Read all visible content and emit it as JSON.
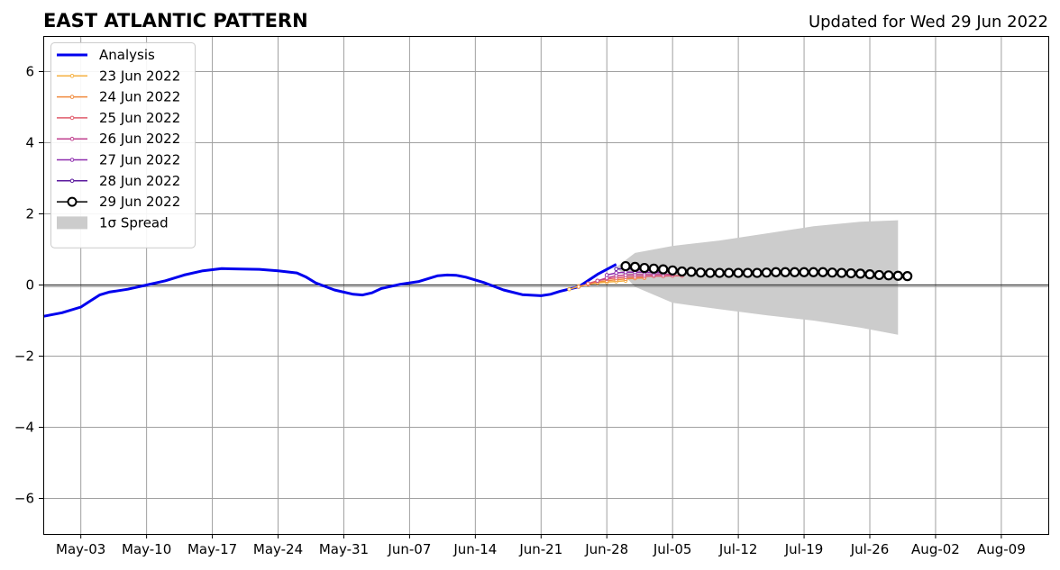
{
  "chart_data": {
    "type": "line",
    "title": "EAST ATLANTIC PATTERN",
    "subtitle": "Updated for Wed 29 Jun 2022",
    "xlabel": "",
    "ylabel": "",
    "xlim": [
      "2022-04-29",
      "2022-08-14"
    ],
    "ylim": [
      -7,
      7
    ],
    "grid": true,
    "legend_position": "top-left",
    "x_ticks": [
      {
        "date": "2022-05-03",
        "label": "May-03"
      },
      {
        "date": "2022-05-10",
        "label": "May-10"
      },
      {
        "date": "2022-05-17",
        "label": "May-17"
      },
      {
        "date": "2022-05-24",
        "label": "May-24"
      },
      {
        "date": "2022-05-31",
        "label": "May-31"
      },
      {
        "date": "2022-06-07",
        "label": "Jun-07"
      },
      {
        "date": "2022-06-14",
        "label": "Jun-14"
      },
      {
        "date": "2022-06-21",
        "label": "Jun-21"
      },
      {
        "date": "2022-06-28",
        "label": "Jun-28"
      },
      {
        "date": "2022-07-05",
        "label": "Jul-05"
      },
      {
        "date": "2022-07-12",
        "label": "Jul-12"
      },
      {
        "date": "2022-07-19",
        "label": "Jul-19"
      },
      {
        "date": "2022-07-26",
        "label": "Jul-26"
      },
      {
        "date": "2022-08-02",
        "label": "Aug-02"
      },
      {
        "date": "2022-08-09",
        "label": "Aug-09"
      }
    ],
    "y_ticks": [
      {
        "value": 6,
        "label": "6"
      },
      {
        "value": 4,
        "label": "4"
      },
      {
        "value": 2,
        "label": "2"
      },
      {
        "value": 0,
        "label": "0"
      },
      {
        "value": -2,
        "label": "−2"
      },
      {
        "value": -4,
        "label": "−4"
      },
      {
        "value": -6,
        "label": "−6"
      }
    ],
    "spread_band": {
      "name": "1σ Spread",
      "color": "#cccccc",
      "x": [
        "2022-06-29",
        "2022-07-01",
        "2022-07-05",
        "2022-07-10",
        "2022-07-15",
        "2022-07-20",
        "2022-07-25",
        "2022-07-29"
      ],
      "upper": [
        0.5,
        0.9,
        1.1,
        1.25,
        1.45,
        1.65,
        1.78,
        1.82
      ],
      "lower": [
        0.5,
        -0.05,
        -0.5,
        -0.68,
        -0.85,
        -1.0,
        -1.2,
        -1.4
      ]
    },
    "series": [
      {
        "name": "Analysis",
        "color": "#0000ee",
        "markers": false,
        "x": [
          "2022-04-29",
          "2022-05-01",
          "2022-05-03",
          "2022-05-04",
          "2022-05-05",
          "2022-05-06",
          "2022-05-07",
          "2022-05-08",
          "2022-05-10",
          "2022-05-12",
          "2022-05-14",
          "2022-05-16",
          "2022-05-18",
          "2022-05-20",
          "2022-05-22",
          "2022-05-24",
          "2022-05-26",
          "2022-05-27",
          "2022-05-28",
          "2022-05-30",
          "2022-06-01",
          "2022-06-02",
          "2022-06-03",
          "2022-06-04",
          "2022-06-06",
          "2022-06-08",
          "2022-06-10",
          "2022-06-11",
          "2022-06-12",
          "2022-06-13",
          "2022-06-15",
          "2022-06-17",
          "2022-06-19",
          "2022-06-21",
          "2022-06-22",
          "2022-06-23",
          "2022-06-25",
          "2022-06-27",
          "2022-06-29"
        ],
        "values": [
          -0.88,
          -0.78,
          -0.62,
          -0.45,
          -0.28,
          -0.2,
          -0.16,
          -0.12,
          0.0,
          0.12,
          0.28,
          0.4,
          0.46,
          0.45,
          0.44,
          0.4,
          0.34,
          0.22,
          0.06,
          -0.14,
          -0.26,
          -0.28,
          -0.22,
          -0.1,
          0.02,
          0.1,
          0.26,
          0.28,
          0.27,
          0.22,
          0.06,
          -0.14,
          -0.27,
          -0.3,
          -0.26,
          -0.18,
          -0.05,
          0.3,
          0.58
        ]
      },
      {
        "name": "23 Jun 2022",
        "color": "#f5b041",
        "markers": true,
        "x": [
          "2022-06-24",
          "2022-06-25",
          "2022-06-26",
          "2022-06-27",
          "2022-06-28",
          "2022-06-29",
          "2022-06-30"
        ],
        "values": [
          -0.12,
          -0.04,
          0.02,
          0.06,
          0.08,
          0.1,
          0.12
        ]
      },
      {
        "name": "24 Jun 2022",
        "color": "#f08a3c",
        "markers": true,
        "x": [
          "2022-06-25",
          "2022-06-26",
          "2022-06-27",
          "2022-06-28",
          "2022-06-29",
          "2022-06-30",
          "2022-07-01",
          "2022-07-02"
        ],
        "values": [
          -0.05,
          0.02,
          0.08,
          0.12,
          0.15,
          0.17,
          0.19,
          0.2
        ]
      },
      {
        "name": "25 Jun 2022",
        "color": "#e05c6c",
        "markers": true,
        "x": [
          "2022-06-26",
          "2022-06-27",
          "2022-06-28",
          "2022-06-29",
          "2022-06-30",
          "2022-07-01",
          "2022-07-02",
          "2022-07-03",
          "2022-07-04",
          "2022-07-05",
          "2022-07-06"
        ],
        "values": [
          0.04,
          0.12,
          0.17,
          0.2,
          0.22,
          0.23,
          0.24,
          0.25,
          0.25,
          0.26,
          0.26
        ]
      },
      {
        "name": "26 Jun 2022",
        "color": "#c0418f",
        "markers": true,
        "x": [
          "2022-06-27",
          "2022-06-28",
          "2022-06-29",
          "2022-06-30",
          "2022-07-01",
          "2022-07-02",
          "2022-07-03",
          "2022-07-04",
          "2022-07-05"
        ],
        "values": [
          0.12,
          0.2,
          0.26,
          0.28,
          0.29,
          0.29,
          0.29,
          0.3,
          0.3
        ]
      },
      {
        "name": "27 Jun 2022",
        "color": "#8e2cae",
        "markers": true,
        "x": [
          "2022-06-28",
          "2022-06-29",
          "2022-06-30",
          "2022-07-01",
          "2022-07-02",
          "2022-07-03",
          "2022-07-04"
        ],
        "values": [
          0.28,
          0.34,
          0.36,
          0.36,
          0.36,
          0.35,
          0.35
        ]
      },
      {
        "name": "28 Jun 2022",
        "color": "#5b1a9e",
        "markers": true,
        "x": [
          "2022-06-29",
          "2022-06-30",
          "2022-07-01",
          "2022-07-02",
          "2022-07-03",
          "2022-07-04"
        ],
        "values": [
          0.45,
          0.46,
          0.44,
          0.42,
          0.4,
          0.39
        ]
      },
      {
        "name": "29 Jun 2022",
        "color": "#000000",
        "markers": true,
        "marker_style": "large-open-circle",
        "x": [
          "2022-06-30",
          "2022-07-01",
          "2022-07-02",
          "2022-07-03",
          "2022-07-04",
          "2022-07-05",
          "2022-07-06",
          "2022-07-07",
          "2022-07-08",
          "2022-07-09",
          "2022-07-10",
          "2022-07-11",
          "2022-07-12",
          "2022-07-13",
          "2022-07-14",
          "2022-07-15",
          "2022-07-16",
          "2022-07-17",
          "2022-07-18",
          "2022-07-19",
          "2022-07-20",
          "2022-07-21",
          "2022-07-22",
          "2022-07-23",
          "2022-07-24",
          "2022-07-25",
          "2022-07-26",
          "2022-07-27",
          "2022-07-28",
          "2022-07-29",
          "2022-07-30"
        ],
        "values": [
          0.53,
          0.51,
          0.48,
          0.46,
          0.44,
          0.41,
          0.38,
          0.37,
          0.35,
          0.34,
          0.34,
          0.34,
          0.34,
          0.34,
          0.34,
          0.35,
          0.36,
          0.36,
          0.36,
          0.36,
          0.36,
          0.36,
          0.35,
          0.34,
          0.33,
          0.32,
          0.3,
          0.28,
          0.27,
          0.26,
          0.25
        ]
      }
    ]
  }
}
